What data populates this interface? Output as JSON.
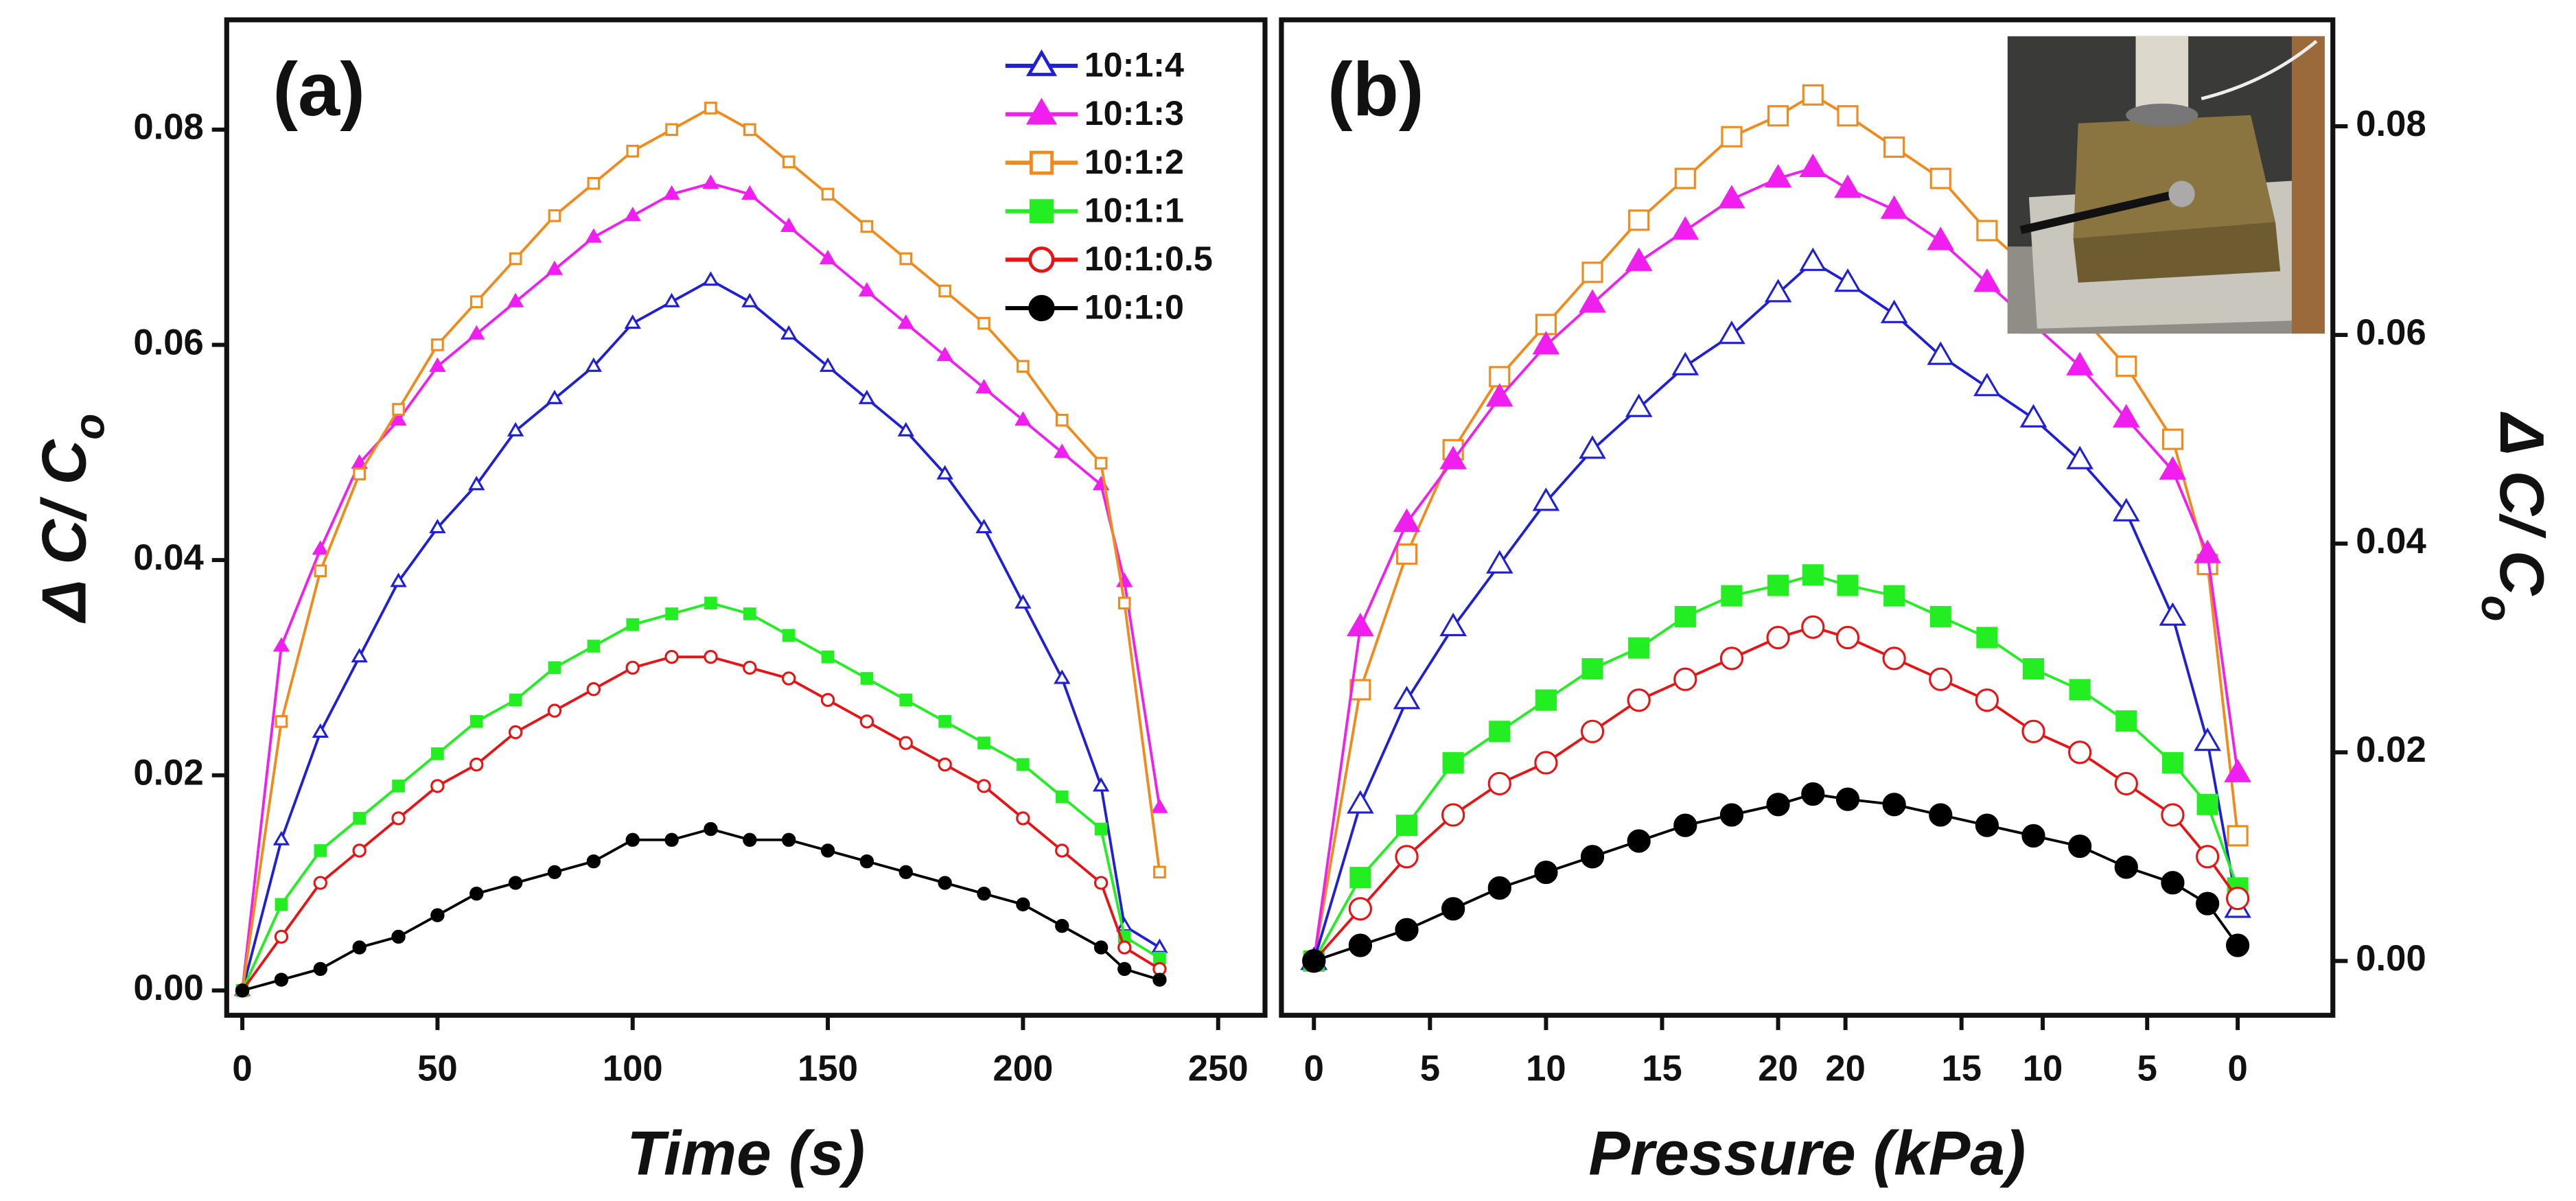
{
  "chart_data": [
    {
      "type": "line",
      "panel_label": "(a)",
      "xlabel": "Time (s)",
      "ylabel": "Δ C/ Co",
      "x": [
        0,
        10,
        20,
        30,
        40,
        50,
        60,
        70,
        80,
        90,
        100,
        110,
        120,
        130,
        140,
        150,
        160,
        170,
        180,
        190,
        200,
        210,
        220,
        226,
        235
      ],
      "xlim": [
        -4,
        262
      ],
      "xticks": [
        0,
        50,
        100,
        150,
        200,
        250
      ],
      "ylim": [
        -0.0023,
        0.0902
      ],
      "yticks": [
        {
          "value": 0,
          "label": "0.00"
        },
        {
          "value": 0.02,
          "label": "0.02"
        },
        {
          "value": 0.04,
          "label": "0.04"
        },
        {
          "value": 0.06,
          "label": "0.06"
        },
        {
          "value": 0.08,
          "label": "0.08"
        }
      ],
      "y_axis_side": "left",
      "legend": "upper right",
      "series": [
        {
          "name": "10:1:4",
          "color": "#1f1fd6",
          "marker": "triangle",
          "filled": false,
          "values": [
            0,
            0.014,
            0.024,
            0.031,
            0.038,
            0.043,
            0.047,
            0.052,
            0.055,
            0.058,
            0.062,
            0.064,
            0.066,
            0.064,
            0.061,
            0.058,
            0.055,
            0.052,
            0.048,
            0.043,
            0.036,
            0.029,
            0.019,
            0.006,
            0.004
          ]
        },
        {
          "name": "10:1:3",
          "color": "#f01ff0",
          "marker": "triangle",
          "filled": true,
          "values": [
            0,
            0.032,
            0.041,
            0.049,
            0.053,
            0.058,
            0.061,
            0.064,
            0.067,
            0.07,
            0.072,
            0.074,
            0.075,
            0.074,
            0.071,
            0.068,
            0.065,
            0.062,
            0.059,
            0.056,
            0.053,
            0.05,
            0.047,
            0.038,
            0.017
          ]
        },
        {
          "name": "10:1:2",
          "color": "#f08a1a",
          "marker": "square",
          "filled": false,
          "values": [
            0,
            0.025,
            0.039,
            0.048,
            0.054,
            0.06,
            0.064,
            0.068,
            0.072,
            0.075,
            0.078,
            0.08,
            0.082,
            0.08,
            0.077,
            0.074,
            0.071,
            0.068,
            0.065,
            0.062,
            0.058,
            0.053,
            0.049,
            0.036,
            0.011
          ]
        },
        {
          "name": "10:1:1",
          "color": "#22ee22",
          "marker": "square",
          "filled": true,
          "values": [
            0,
            0.008,
            0.013,
            0.016,
            0.019,
            0.022,
            0.025,
            0.027,
            0.03,
            0.032,
            0.034,
            0.035,
            0.036,
            0.035,
            0.033,
            0.031,
            0.029,
            0.027,
            0.025,
            0.023,
            0.021,
            0.018,
            0.015,
            0.005,
            0.003
          ]
        },
        {
          "name": "10:1:0.5",
          "color": "#e61414",
          "marker": "circle",
          "filled": false,
          "values": [
            0,
            0.005,
            0.01,
            0.013,
            0.016,
            0.019,
            0.021,
            0.024,
            0.026,
            0.028,
            0.03,
            0.031,
            0.031,
            0.03,
            0.029,
            0.027,
            0.025,
            0.023,
            0.021,
            0.019,
            0.016,
            0.013,
            0.01,
            0.004,
            0.002
          ]
        },
        {
          "name": "10:1:0",
          "color": "#000000",
          "marker": "circle",
          "filled": true,
          "values": [
            0,
            0.001,
            0.002,
            0.004,
            0.005,
            0.007,
            0.009,
            0.01,
            0.011,
            0.012,
            0.014,
            0.014,
            0.015,
            0.014,
            0.014,
            0.013,
            0.012,
            0.011,
            0.01,
            0.009,
            0.008,
            0.006,
            0.004,
            0.002,
            0.001
          ]
        }
      ]
    },
    {
      "type": "line",
      "panel_label": "(b)",
      "xlabel": "Pressure (kPa)",
      "ylabel": "Δ C/ Co",
      "x": [
        0,
        2,
        4,
        6,
        8,
        10,
        12,
        14,
        16,
        18,
        20,
        21.5,
        23,
        25,
        27,
        29,
        31,
        33,
        35,
        37,
        38.5,
        39.8
      ],
      "xlim": [
        -1.4,
        43.9
      ],
      "xticks": [
        0,
        5,
        10,
        15,
        20,
        {
          "value": 22.9,
          "label": "20"
        },
        {
          "value": 27.9,
          "label": "15"
        },
        {
          "value": 31.4,
          "label": "10"
        },
        {
          "value": 35.9,
          "label": "5"
        },
        {
          "value": 39.8,
          "label": "0"
        }
      ],
      "ylim": [
        -0.0052,
        0.0902
      ],
      "yticks": [
        {
          "value": 0,
          "label": "0.00"
        },
        {
          "value": 0.02,
          "label": "0.02"
        },
        {
          "value": 0.04,
          "label": "0.04"
        },
        {
          "value": 0.06,
          "label": "0.06"
        },
        {
          "value": 0.08,
          "label": "0.08"
        }
      ],
      "y_axis_side": "right",
      "series": [
        {
          "color": "#f08a1a",
          "marker": "square",
          "filled": false,
          "values": [
            0,
            0.026,
            0.039,
            0.049,
            0.056,
            0.061,
            0.066,
            0.071,
            0.075,
            0.079,
            0.081,
            0.083,
            0.081,
            0.078,
            0.075,
            0.07,
            0.066,
            0.062,
            0.057,
            0.05,
            0.038,
            0.012
          ]
        },
        {
          "color": "#f01ff0",
          "marker": "triangle",
          "filled": true,
          "values": [
            0,
            0.032,
            0.042,
            0.048,
            0.054,
            0.059,
            0.063,
            0.067,
            0.07,
            0.073,
            0.075,
            0.076,
            0.074,
            0.072,
            0.069,
            0.065,
            0.061,
            0.057,
            0.052,
            0.047,
            0.039,
            0.018
          ]
        },
        {
          "color": "#1f1fd6",
          "marker": "triangle",
          "filled": false,
          "values": [
            0,
            0.015,
            0.025,
            0.032,
            0.038,
            0.044,
            0.049,
            0.053,
            0.057,
            0.06,
            0.064,
            0.067,
            0.065,
            0.062,
            0.058,
            0.055,
            0.052,
            0.048,
            0.043,
            0.033,
            0.021,
            0.005
          ]
        },
        {
          "color": "#22ee22",
          "marker": "square",
          "filled": true,
          "values": [
            0,
            0.008,
            0.013,
            0.019,
            0.022,
            0.025,
            0.028,
            0.03,
            0.033,
            0.035,
            0.036,
            0.037,
            0.036,
            0.035,
            0.033,
            0.031,
            0.028,
            0.026,
            0.023,
            0.019,
            0.015,
            0.007
          ]
        },
        {
          "color": "#e61414",
          "marker": "circle",
          "filled": false,
          "values": [
            0,
            0.005,
            0.01,
            0.014,
            0.017,
            0.019,
            0.022,
            0.025,
            0.027,
            0.029,
            0.031,
            0.032,
            0.031,
            0.029,
            0.027,
            0.025,
            0.022,
            0.02,
            0.017,
            0.014,
            0.01,
            0.006
          ]
        },
        {
          "color": "#000000",
          "marker": "circle",
          "filled": true,
          "values": [
            0,
            0.0015,
            0.003,
            0.005,
            0.007,
            0.0085,
            0.01,
            0.0115,
            0.013,
            0.014,
            0.015,
            0.016,
            0.0155,
            0.015,
            0.014,
            0.013,
            0.012,
            0.011,
            0.009,
            0.0075,
            0.0055,
            0.0015
          ]
        }
      ]
    }
  ]
}
